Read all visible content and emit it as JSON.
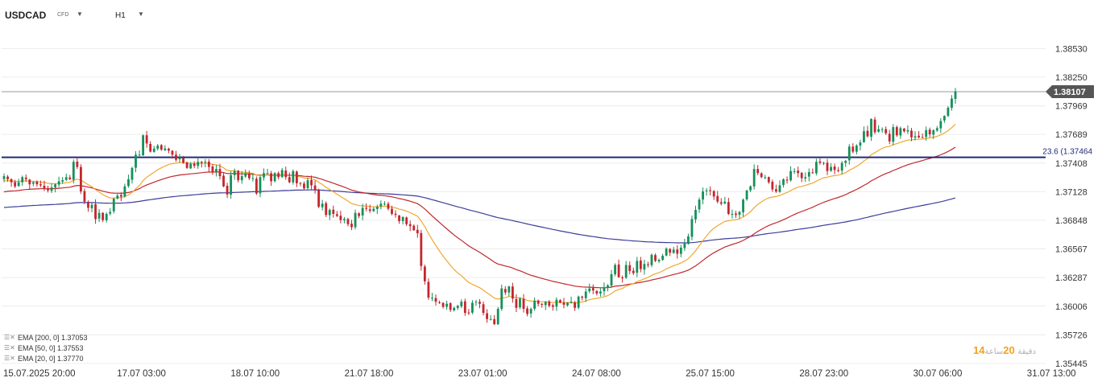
{
  "header": {
    "symbol": "USDCAD",
    "instrument_type": "CFD",
    "timeframe": "H1"
  },
  "indicators": [
    {
      "label": "EMA [200, 0] 1.37053",
      "color": "#3c3d99"
    },
    {
      "label": "EMA [50, 0] 1.37553",
      "color": "#c0272d"
    },
    {
      "label": "EMA [20, 0] 1.37770",
      "color": "#f0a830"
    }
  ],
  "countdown": {
    "minutes": "14",
    "minutes_label": "دقيقة",
    "hours": "20",
    "hours_label": "ساعة"
  },
  "chart_data": {
    "type": "candlestick",
    "y_ticks": [
      "1.38530",
      "1.38250",
      "1.37969",
      "1.37689",
      "1.37408",
      "1.37128",
      "1.36848",
      "1.36567",
      "1.36287",
      "1.36006",
      "1.35726",
      "1.35445"
    ],
    "x_ticks": [
      "15.07.2025  20:00",
      "17.07  03:00",
      "18.07  10:00",
      "21.07  18:00",
      "23.07  01:00",
      "24.07  08:00",
      "25.07  15:00",
      "28.07  23:00",
      "30.07  06:00",
      "31.07  13:00"
    ],
    "ylim": [
      1.35445,
      1.38706
    ],
    "current_price": {
      "value": 1.38107,
      "label": "1.38107",
      "color": "#555555"
    },
    "fibonacci_level": {
      "value": 1.37464,
      "label": "23.6 (1.37464",
      "color": "#1e2a78"
    },
    "colors": {
      "up": "#15905a",
      "down": "#c4262d"
    },
    "closes": [
      1.3728,
      1.3725,
      1.3722,
      1.3718,
      1.3722,
      1.3727,
      1.3725,
      1.372,
      1.3722,
      1.372,
      1.3719,
      1.3716,
      1.3714,
      1.3717,
      1.372,
      1.3723,
      1.3724,
      1.3727,
      1.3725,
      1.3742,
      1.3737,
      1.3713,
      1.3703,
      1.3697,
      1.37,
      1.3686,
      1.3692,
      1.3685,
      1.3691,
      1.3693,
      1.3706,
      1.3709,
      1.3708,
      1.3718,
      1.3725,
      1.3736,
      1.3749,
      1.3749,
      1.3768,
      1.376,
      1.3752,
      1.3755,
      1.3758,
      1.3754,
      1.3755,
      1.3753,
      1.3749,
      1.3744,
      1.3746,
      1.3741,
      1.3736,
      1.374,
      1.3738,
      1.3742,
      1.3741,
      1.3742,
      1.3737,
      1.3732,
      1.3735,
      1.3728,
      1.3718,
      1.371,
      1.3729,
      1.3733,
      1.3724,
      1.3728,
      1.3731,
      1.3726,
      1.3726,
      1.3711,
      1.3727,
      1.3731,
      1.3731,
      1.3723,
      1.3731,
      1.3727,
      1.3734,
      1.3727,
      1.3722,
      1.3733,
      1.3721,
      1.3721,
      1.3716,
      1.3724,
      1.3719,
      1.3715,
      1.3698,
      1.3701,
      1.369,
      1.3695,
      1.3691,
      1.3689,
      1.3685,
      1.3686,
      1.3681,
      1.3678,
      1.3692,
      1.3689,
      1.3697,
      1.3696,
      1.3694,
      1.3696,
      1.3698,
      1.3701,
      1.3701,
      1.3696,
      1.3691,
      1.369,
      1.3684,
      1.3688,
      1.3681,
      1.3679,
      1.3675,
      1.3672,
      1.364,
      1.3625,
      1.3609,
      1.3609,
      1.3605,
      1.3604,
      1.36,
      1.3603,
      1.3597,
      1.3599,
      1.3601,
      1.3605,
      1.3594,
      1.3594,
      1.3604,
      1.3605,
      1.3603,
      1.3594,
      1.3588,
      1.3588,
      1.3583,
      1.3598,
      1.3618,
      1.3614,
      1.362,
      1.3608,
      1.3599,
      1.3608,
      1.3598,
      1.3593,
      1.3598,
      1.3606,
      1.3603,
      1.3602,
      1.3605,
      1.3601,
      1.36,
      1.3607,
      1.3604,
      1.3602,
      1.3604,
      1.3605,
      1.3599,
      1.361,
      1.3609,
      1.3615,
      1.3618,
      1.3616,
      1.3613,
      1.3615,
      1.3619,
      1.3621,
      1.3632,
      1.3641,
      1.3629,
      1.3628,
      1.3641,
      1.3635,
      1.3633,
      1.3645,
      1.3637,
      1.3642,
      1.3641,
      1.3651,
      1.3645,
      1.3646,
      1.365,
      1.3657,
      1.3653,
      1.3656,
      1.3652,
      1.3658,
      1.3662,
      1.3669,
      1.3686,
      1.3695,
      1.3705,
      1.3713,
      1.3714,
      1.3714,
      1.3708,
      1.3703,
      1.3701,
      1.3703,
      1.3691,
      1.3691,
      1.369,
      1.3693,
      1.3705,
      1.3714,
      1.3718,
      1.3735,
      1.3731,
      1.3727,
      1.3727,
      1.3722,
      1.3715,
      1.3713,
      1.3719,
      1.3725,
      1.3724,
      1.3733,
      1.3733,
      1.3731,
      1.3726,
      1.3727,
      1.3732,
      1.3731,
      1.3742,
      1.3741,
      1.3741,
      1.3733,
      1.3737,
      1.3734,
      1.3733,
      1.3741,
      1.3743,
      1.3757,
      1.3752,
      1.3758,
      1.3761,
      1.3772,
      1.3767,
      1.3784,
      1.3771,
      1.3774,
      1.3774,
      1.377,
      1.3762,
      1.3776,
      1.3768,
      1.3775,
      1.3772,
      1.3773,
      1.3766,
      1.3767,
      1.3766,
      1.3766,
      1.3773,
      1.3769,
      1.3773,
      1.3775,
      1.3782,
      1.3787,
      1.3795,
      1.3804,
      1.3811
    ]
  }
}
